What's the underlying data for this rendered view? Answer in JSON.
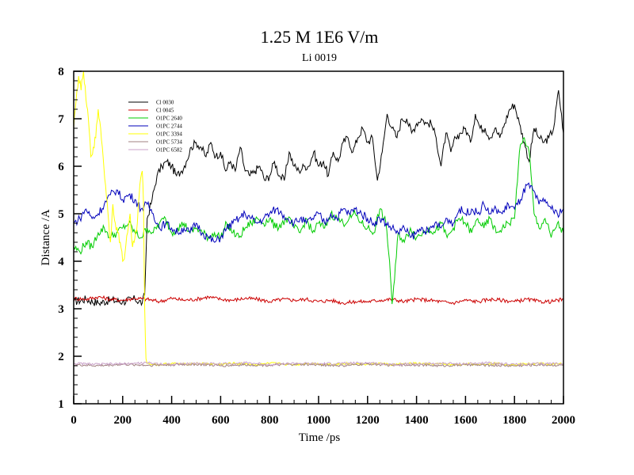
{
  "chart_data": {
    "type": "line",
    "title": "1.25 M 1E6 V/m",
    "subtitle": "Li 0019",
    "xlabel": "Time /ps",
    "ylabel": "Distance /A",
    "xlim": [
      0,
      2000
    ],
    "ylim": [
      1,
      8
    ],
    "xticks": [
      0,
      200,
      400,
      600,
      800,
      1000,
      1200,
      1400,
      1600,
      1800,
      2000
    ],
    "yticks": [
      1,
      2,
      3,
      4,
      5,
      6,
      7,
      8
    ],
    "grid": false,
    "legend_position": "top-left",
    "series": [
      {
        "name": "Cl 0030",
        "color": "#000000",
        "x": [
          0,
          50,
          100,
          150,
          200,
          250,
          280,
          290,
          300,
          320,
          340,
          360,
          380,
          400,
          420,
          440,
          460,
          480,
          500,
          520,
          540,
          560,
          580,
          600,
          620,
          640,
          660,
          680,
          700,
          720,
          740,
          760,
          780,
          800,
          820,
          840,
          860,
          880,
          900,
          920,
          940,
          960,
          980,
          1000,
          1020,
          1040,
          1060,
          1080,
          1100,
          1120,
          1140,
          1160,
          1180,
          1200,
          1220,
          1240,
          1260,
          1280,
          1300,
          1320,
          1340,
          1360,
          1380,
          1400,
          1420,
          1440,
          1460,
          1480,
          1500,
          1520,
          1540,
          1560,
          1580,
          1600,
          1620,
          1640,
          1660,
          1680,
          1700,
          1720,
          1740,
          1760,
          1780,
          1800,
          1820,
          1840,
          1860,
          1880,
          1900,
          1920,
          1940,
          1960,
          1980,
          2000
        ],
        "y": [
          3.15,
          3.2,
          3.12,
          3.18,
          3.15,
          3.2,
          3.12,
          3.3,
          4.9,
          5.3,
          5.8,
          6.0,
          6.1,
          6.0,
          5.8,
          5.9,
          6.1,
          6.4,
          6.5,
          6.4,
          6.2,
          6.5,
          6.2,
          6.3,
          5.9,
          6.1,
          5.9,
          6.4,
          5.9,
          5.8,
          5.9,
          6.0,
          5.7,
          5.8,
          6.1,
          5.8,
          5.7,
          6.3,
          6.0,
          5.9,
          6.0,
          6.0,
          6.3,
          6.0,
          6.1,
          5.8,
          6.3,
          6.1,
          6.5,
          6.6,
          6.3,
          6.6,
          6.8,
          6.5,
          6.6,
          5.7,
          6.3,
          7.1,
          6.8,
          6.6,
          7.0,
          7.0,
          6.7,
          6.9,
          7.0,
          6.9,
          6.9,
          6.6,
          6.0,
          6.7,
          6.3,
          6.6,
          6.7,
          6.8,
          6.5,
          7.1,
          6.8,
          6.8,
          6.6,
          6.8,
          6.6,
          6.9,
          7.2,
          7.3,
          6.9,
          6.5,
          6.1,
          6.8,
          6.6,
          6.5,
          6.6,
          6.8,
          7.6,
          6.7
        ]
      },
      {
        "name": "Cl 0045",
        "color": "#cc0000",
        "x": [
          0,
          50,
          100,
          150,
          200,
          250,
          300,
          350,
          400,
          450,
          500,
          550,
          600,
          650,
          700,
          750,
          800,
          850,
          900,
          950,
          1000,
          1050,
          1100,
          1150,
          1200,
          1250,
          1300,
          1350,
          1400,
          1450,
          1500,
          1550,
          1600,
          1650,
          1700,
          1750,
          1800,
          1850,
          1900,
          1950,
          2000
        ],
        "y": [
          3.22,
          3.2,
          3.25,
          3.2,
          3.18,
          3.22,
          3.2,
          3.15,
          3.22,
          3.18,
          3.2,
          3.25,
          3.2,
          3.18,
          3.22,
          3.2,
          3.15,
          3.2,
          3.18,
          3.2,
          3.15,
          3.18,
          3.12,
          3.15,
          3.15,
          3.18,
          3.2,
          3.15,
          3.2,
          3.18,
          3.15,
          3.12,
          3.18,
          3.15,
          3.2,
          3.18,
          3.15,
          3.2,
          3.15,
          3.15,
          3.2
        ]
      },
      {
        "name": "O1PC 2640",
        "color": "#00cc00",
        "x": [
          0,
          25,
          50,
          75,
          100,
          125,
          150,
          175,
          200,
          225,
          250,
          275,
          300,
          325,
          350,
          375,
          400,
          425,
          450,
          475,
          500,
          525,
          550,
          575,
          600,
          625,
          650,
          675,
          700,
          725,
          750,
          775,
          800,
          825,
          850,
          875,
          900,
          925,
          950,
          975,
          1000,
          1025,
          1050,
          1075,
          1100,
          1125,
          1150,
          1175,
          1200,
          1225,
          1250,
          1275,
          1290,
          1300,
          1310,
          1325,
          1350,
          1375,
          1400,
          1425,
          1450,
          1475,
          1500,
          1525,
          1550,
          1575,
          1600,
          1625,
          1650,
          1675,
          1700,
          1725,
          1750,
          1775,
          1800,
          1820,
          1840,
          1860,
          1880,
          1900,
          1925,
          1950,
          1975,
          2000
        ],
        "y": [
          4.3,
          4.2,
          4.4,
          4.3,
          4.6,
          4.7,
          4.5,
          4.6,
          4.7,
          4.8,
          4.6,
          4.5,
          4.7,
          4.6,
          4.8,
          4.9,
          4.6,
          4.7,
          4.8,
          4.6,
          4.7,
          4.6,
          4.5,
          4.6,
          4.5,
          4.8,
          4.6,
          4.5,
          4.7,
          4.8,
          4.9,
          4.8,
          4.9,
          4.7,
          4.8,
          4.9,
          4.7,
          4.6,
          4.9,
          4.6,
          4.8,
          4.7,
          5.0,
          4.9,
          4.8,
          4.9,
          5.0,
          4.8,
          4.7,
          4.6,
          5.1,
          4.8,
          4.0,
          3.1,
          3.6,
          4.6,
          4.4,
          4.7,
          4.5,
          4.6,
          4.7,
          4.6,
          4.8,
          4.5,
          4.7,
          4.9,
          4.8,
          4.6,
          4.9,
          4.7,
          4.9,
          4.6,
          4.7,
          4.8,
          4.9,
          6.3,
          6.6,
          6.3,
          5.0,
          4.7,
          4.9,
          4.5,
          4.8,
          4.6
        ]
      },
      {
        "name": "O1PC 2744",
        "color": "#0000bb",
        "x": [
          0,
          25,
          50,
          75,
          100,
          125,
          150,
          175,
          200,
          225,
          250,
          275,
          300,
          325,
          350,
          375,
          400,
          425,
          450,
          475,
          500,
          525,
          550,
          575,
          600,
          625,
          650,
          675,
          700,
          725,
          750,
          775,
          800,
          825,
          850,
          875,
          900,
          925,
          950,
          975,
          1000,
          1025,
          1050,
          1075,
          1100,
          1125,
          1150,
          1175,
          1200,
          1225,
          1250,
          1275,
          1300,
          1325,
          1350,
          1375,
          1400,
          1425,
          1450,
          1475,
          1500,
          1525,
          1550,
          1575,
          1600,
          1625,
          1650,
          1675,
          1700,
          1725,
          1750,
          1775,
          1800,
          1825,
          1850,
          1875,
          1900,
          1925,
          1950,
          1975,
          2000
        ],
        "y": [
          4.8,
          4.9,
          5.1,
          4.9,
          5.0,
          5.2,
          5.4,
          5.5,
          5.3,
          5.4,
          5.3,
          5.1,
          5.2,
          5.0,
          4.7,
          4.8,
          4.7,
          4.6,
          4.7,
          4.6,
          4.8,
          4.6,
          4.5,
          4.4,
          4.5,
          4.7,
          4.8,
          4.9,
          5.0,
          4.9,
          4.8,
          4.9,
          5.0,
          5.1,
          5.0,
          4.9,
          4.8,
          4.9,
          4.8,
          4.9,
          5.0,
          4.8,
          5.0,
          4.9,
          5.1,
          5.0,
          5.1,
          5.0,
          4.9,
          4.8,
          4.9,
          4.8,
          4.7,
          4.6,
          4.7,
          4.5,
          4.6,
          4.7,
          4.6,
          4.8,
          4.7,
          4.9,
          4.8,
          5.1,
          5.0,
          5.1,
          5.0,
          5.2,
          5.0,
          5.1,
          5.0,
          5.2,
          5.1,
          5.3,
          5.6,
          5.5,
          5.2,
          5.3,
          5.1,
          5.0,
          5.1
        ]
      },
      {
        "name": "O1PC 3394",
        "color": "#ffff00",
        "x": [
          0,
          10,
          20,
          30,
          40,
          50,
          60,
          70,
          80,
          90,
          100,
          110,
          120,
          130,
          140,
          150,
          160,
          170,
          180,
          190,
          200,
          210,
          220,
          230,
          240,
          250,
          260,
          270,
          280,
          285,
          290,
          295,
          300,
          350,
          400,
          450,
          500,
          550,
          600,
          650,
          700,
          750,
          800,
          850,
          900,
          950,
          1000,
          1050,
          1100,
          1150,
          1200,
          1250,
          1300,
          1350,
          1400,
          1450,
          1500,
          1550,
          1600,
          1650,
          1700,
          1750,
          1800,
          1850,
          1900,
          1950,
          2000
        ],
        "y": [
          6.8,
          7.4,
          7.9,
          7.6,
          8.0,
          7.4,
          7.0,
          6.2,
          6.4,
          6.6,
          7.2,
          6.8,
          6.2,
          5.6,
          5.0,
          4.4,
          5.2,
          4.8,
          4.6,
          4.4,
          4.0,
          4.2,
          4.6,
          5.0,
          4.3,
          4.5,
          4.8,
          5.6,
          5.9,
          5.2,
          3.0,
          1.95,
          1.85,
          1.82,
          1.85,
          1.83,
          1.85,
          1.84,
          1.83,
          1.85,
          1.84,
          1.82,
          1.85,
          1.84,
          1.82,
          1.85,
          1.84,
          1.83,
          1.85,
          1.84,
          1.83,
          1.85,
          1.82,
          1.84,
          1.85,
          1.83,
          1.84,
          1.82,
          1.84,
          1.83,
          1.85,
          1.84,
          1.82,
          1.84,
          1.85,
          1.83,
          1.84
        ]
      },
      {
        "name": "O1PC 5734",
        "color": "#a08080",
        "x": [
          0,
          100,
          200,
          300,
          400,
          500,
          600,
          700,
          800,
          900,
          1000,
          1100,
          1200,
          1300,
          1400,
          1500,
          1600,
          1700,
          1800,
          1900,
          2000
        ],
        "y": [
          1.82,
          1.8,
          1.83,
          1.81,
          1.82,
          1.83,
          1.8,
          1.82,
          1.81,
          1.83,
          1.82,
          1.8,
          1.84,
          1.81,
          1.82,
          1.8,
          1.82,
          1.81,
          1.8,
          1.82,
          1.81
        ]
      },
      {
        "name": "O1PC 6582",
        "color": "#c8a0c8",
        "x": [
          0,
          100,
          200,
          300,
          400,
          500,
          600,
          700,
          800,
          900,
          1000,
          1100,
          1200,
          1300,
          1400,
          1500,
          1600,
          1700,
          1800,
          1900,
          2000
        ],
        "y": [
          1.85,
          1.83,
          1.84,
          1.86,
          1.83,
          1.85,
          1.84,
          1.86,
          1.83,
          1.85,
          1.84,
          1.85,
          1.86,
          1.83,
          1.84,
          1.85,
          1.84,
          1.86,
          1.83,
          1.84,
          1.85
        ]
      }
    ]
  }
}
